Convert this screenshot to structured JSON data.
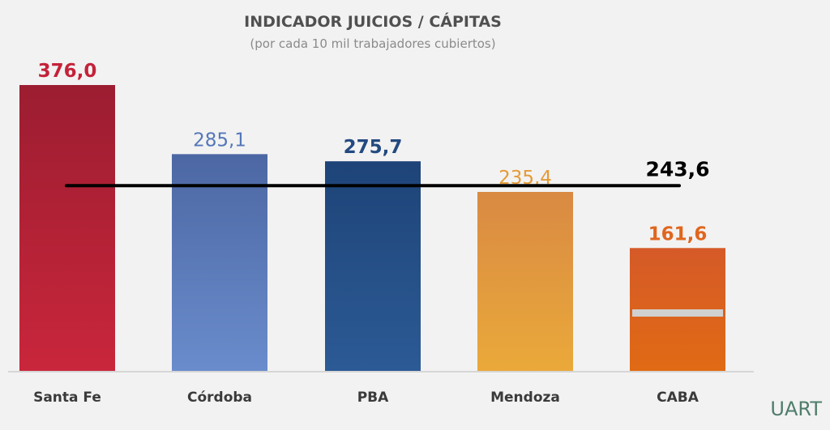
{
  "chart_data": {
    "type": "bar",
    "title": "INDICADOR JUICIOS / CÁPITAS",
    "subtitle": "(por cada 10 mil trabajadores cubiertos)",
    "categories": [
      "Santa Fe",
      "Córdoba",
      "PBA",
      "Mendoza",
      "CABA"
    ],
    "values": [
      376.0,
      285.1,
      275.7,
      235.4,
      161.6
    ],
    "value_labels": [
      "376,0",
      "285,1",
      "275,7",
      "235,4",
      "161,6"
    ],
    "average": {
      "value": 243.6,
      "label": "243,6",
      "color": "#000000"
    },
    "bar_colors": [
      {
        "top": "#9c1d31",
        "bottom": "#c9263b",
        "label": "#c4223a"
      },
      {
        "top": "#4c67a3",
        "bottom": "#6a8ccc",
        "label": "#5577b8"
      },
      {
        "top": "#1e4478",
        "bottom": "#2c5a95",
        "label": "#234a80"
      },
      {
        "top": "#d98a43",
        "bottom": "#eaa93a",
        "label": "#e59a36"
      },
      {
        "top": "#d55a28",
        "bottom": "#e06a14",
        "label": "#e0661e"
      }
    ],
    "ylim": [
      0,
      376.0
    ],
    "grid": false,
    "legend": "none"
  },
  "logo_text": "UART"
}
